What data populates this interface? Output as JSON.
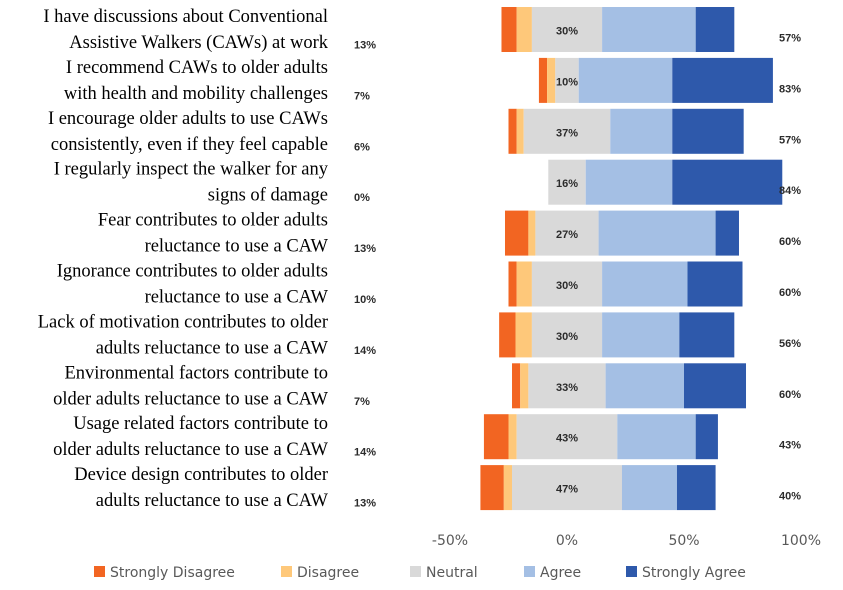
{
  "chart_data": {
    "type": "bar",
    "orientation": "horizontal-diverging",
    "title": "",
    "xlabel": "",
    "ylabel": "",
    "xlim": [
      -50,
      100
    ],
    "x_ticks": [
      "-50%",
      "0%",
      "50%",
      "100%"
    ],
    "x_tick_values": [
      -50,
      0,
      50,
      100
    ],
    "grid": false,
    "legend_position": "bottom",
    "series_names": [
      "Strongly Disagree",
      "Disagree",
      "Neutral",
      "Agree",
      "Strongly Agree"
    ],
    "colors": {
      "Strongly Disagree": "#F26522",
      "Disagree": "#FEC87A",
      "Neutral": "#D9D9D9",
      "Agree": "#A4BFE4",
      "Strongly Agree": "#2E59AB"
    },
    "categories": [
      {
        "label": [
          "I have discussions about Conventional",
          "Assistive Walkers (CAWs) at work"
        ],
        "values": [
          6.5,
          6.5,
          30,
          40,
          16.5
        ],
        "disagree_label": "13%",
        "neutral_label": "30%",
        "agree_label": "57%"
      },
      {
        "label": [
          "I recommend CAWs to older adults",
          "with health and mobility challenges"
        ],
        "values": [
          3.5,
          3.5,
          10,
          40,
          43
        ],
        "disagree_label": "7%",
        "neutral_label": "10%",
        "agree_label": "83%"
      },
      {
        "label": [
          "I encourage older adults to use CAWs",
          "consistently, even if they feel capable"
        ],
        "values": [
          3.5,
          3.0,
          37,
          26.5,
          30.5
        ],
        "disagree_label": "6%",
        "neutral_label": "37%",
        "agree_label": "57%"
      },
      {
        "label": [
          "I regularly inspect the walker for any",
          "signs of damage"
        ],
        "values": [
          0,
          0,
          16,
          37,
          47
        ],
        "disagree_label": "0%",
        "neutral_label": "16%",
        "agree_label": "84%"
      },
      {
        "label": [
          "Fear contributes to older adults",
          "reluctance to use a CAW"
        ],
        "values": [
          10,
          3,
          27,
          50,
          10
        ],
        "disagree_label": "13%",
        "neutral_label": "27%",
        "agree_label": "60%"
      },
      {
        "label": [
          "Ignorance contributes to older adults",
          "reluctance to use a CAW"
        ],
        "values": [
          3.5,
          6.5,
          30,
          36.5,
          23.5
        ],
        "disagree_label": "10%",
        "neutral_label": "30%",
        "agree_label": "60%"
      },
      {
        "label": [
          "Lack of motivation contributes to older",
          "adults reluctance to use a CAW"
        ],
        "values": [
          7,
          7,
          30,
          33,
          23.5
        ],
        "disagree_label": "14%",
        "neutral_label": "30%",
        "agree_label": "56%"
      },
      {
        "label": [
          "Environmental factors contribute to",
          "older adults reluctance to use a CAW"
        ],
        "values": [
          3.5,
          3.5,
          33,
          33.5,
          26.5
        ],
        "disagree_label": "7%",
        "neutral_label": "33%",
        "agree_label": "60%"
      },
      {
        "label": [
          "Usage related factors contribute to",
          "older adults reluctance to use a CAW"
        ],
        "values": [
          10.5,
          3.5,
          43,
          33.5,
          9.5
        ],
        "disagree_label": "14%",
        "neutral_label": "43%",
        "agree_label": "43%"
      },
      {
        "label": [
          "Device design contributes to older",
          "adults reluctance to use a CAW"
        ],
        "values": [
          10,
          3.5,
          47,
          23.5,
          16.5
        ],
        "disagree_label": "13%",
        "neutral_label": "47%",
        "agree_label": "40%"
      }
    ]
  }
}
